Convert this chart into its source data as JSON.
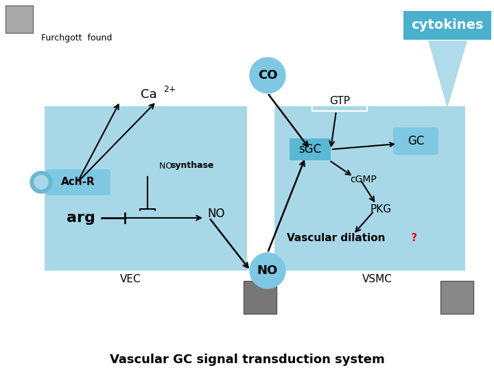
{
  "bg_color": "#ffffff",
  "box_color": "#a8d8e8",
  "box_color_dark": "#7ec8e3",
  "title": "Vascular GC signal transduction system",
  "cytokines_label": "cytokines",
  "cytokines_box_color": "#4ab0cc",
  "furchgott_label": "Furchgott  found",
  "co_label": "CO",
  "no_label": "NO",
  "ca_label": "Ca",
  "ca_superscript": "2+",
  "ach_label": "Ach-R",
  "arg_label": "arg",
  "no_synthase_label1": "NO ",
  "no_synthase_label2": "synthase",
  "gtp_label": "GTP",
  "sgc_label": "sGC",
  "gc_label": "GC",
  "cgmp_label": "cGMP",
  "pkg_label": "PKG",
  "vasc_label": "Vascular dilation",
  "vasc_q": " ?",
  "vec_label": "VEC",
  "vsmc_label": "VSMC"
}
